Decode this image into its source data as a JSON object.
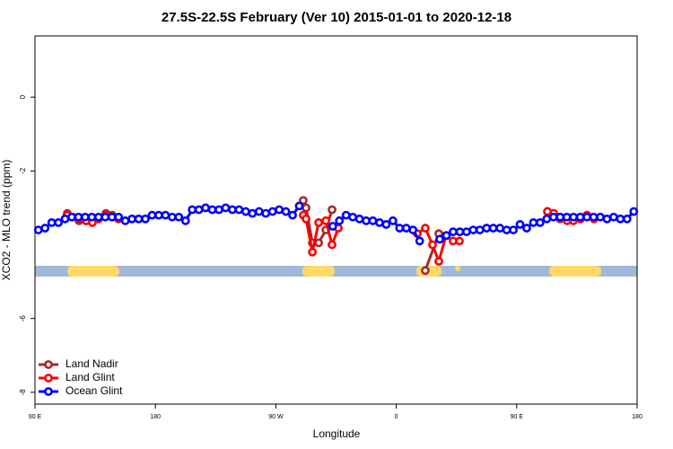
{
  "chart_data": {
    "type": "line",
    "title": "27.5S-22.5S February (Ver 10)   2015-01-01 to 2020-12-18",
    "x_label": "Longitude",
    "y_label": "XCO2 - MLO trend (ppm)",
    "xlim": [
      90,
      540
    ],
    "ylim": [
      -8.32,
      1.66
    ],
    "xticks": [
      {
        "value": 90,
        "label": "90 E"
      },
      180,
      {
        "value": 270,
        "label": "90 W"
      },
      {
        "value": 360,
        "label": "0"
      },
      {
        "value": 450,
        "label": "90 E"
      },
      {
        "value": 540,
        "label": "180"
      }
    ],
    "yticks": [
      0,
      -2,
      -6,
      -8
    ],
    "legend": "bottom-left",
    "series": [
      {
        "name": "Land Nadir",
        "color": "#a52a2a",
        "x": [
          114.1,
          122.9,
          128.2,
          143,
          147.7,
          148,
          290.5,
          292.6,
          297.3,
          302,
          307.4,
          312,
          313,
          381.7,
          391.8,
          392,
          473,
          482.4,
          502.5
        ],
        "values": [
          -3.15,
          -3.35,
          -3.35,
          -3.15,
          -3.2,
          null,
          -2.8,
          -3.0,
          -3.95,
          -3.95,
          -3.6,
          -3.05,
          null,
          -4.7,
          -3.7,
          null,
          -3.1,
          -3.3,
          -3.2
        ]
      },
      {
        "name": "Land Glint",
        "color": "#ff0000",
        "x": [
          114.1,
          118.2,
          122.9,
          128.2,
          132.9,
          137.6,
          143,
          147.7,
          152.4,
          153,
          290.5,
          292.6,
          297.3,
          302,
          307.4,
          312,
          316.7,
          317,
          375.7,
          381.7,
          387.1,
          391.8,
          397.2,
          402.5,
          407.2,
          408,
          473,
          477.7,
          482.4,
          487.7,
          492.4,
          497.8,
          502.5,
          507.8
        ],
        "values": [
          -3.2,
          -3.25,
          -3.3,
          -3.35,
          -3.4,
          -3.3,
          -3.2,
          -3.25,
          -3.3,
          null,
          -3.2,
          -3.3,
          -4.2,
          -3.4,
          -3.35,
          -4.0,
          -3.55,
          null,
          -3.7,
          -3.55,
          -4.0,
          -4.45,
          -3.75,
          -3.9,
          -3.9,
          null,
          -3.1,
          -3.15,
          -3.25,
          -3.35,
          -3.35,
          -3.3,
          -3.2,
          -3.3
        ]
      },
      {
        "name": "Ocean Glint",
        "color": "#0000ff",
        "x": [
          92.5,
          97.5,
          102.5,
          107.5,
          112.5,
          117.5,
          122.5,
          127.5,
          132.5,
          137.5,
          142.5,
          147.5,
          152.5,
          157.5,
          162.5,
          167.5,
          172.5,
          177.5,
          182.5,
          187.5,
          192.5,
          197.5,
          202.5,
          207.5,
          212.5,
          217.5,
          222.5,
          227.5,
          232.5,
          237.5,
          242.5,
          247.5,
          252.5,
          257.5,
          262.5,
          267.5,
          272.5,
          277.5,
          282.5,
          287.5,
          292.5,
          297.5,
          302.5,
          307.5,
          312.5,
          317.5,
          322.5,
          327.5,
          332.5,
          337.5,
          342.5,
          347.5,
          352.5,
          357.5,
          362.5,
          367.5,
          372.5,
          377.5,
          382.5,
          387.5,
          392.5,
          397.5,
          402.5,
          407.5,
          412.5,
          417.5,
          422.5,
          427.5,
          432.5,
          437.5,
          442.5,
          447.5,
          452.5,
          457.5,
          462.5,
          467.5,
          472.5,
          477.5,
          482.5,
          487.5,
          492.5,
          497.5,
          502.5,
          507.5,
          512.5,
          517.5,
          522.5,
          527.5,
          532.5,
          537.5
        ],
        "values": [
          -3.6,
          -3.55,
          -3.4,
          -3.4,
          -3.3,
          -3.25,
          -3.25,
          -3.25,
          -3.25,
          -3.25,
          -3.25,
          -3.25,
          -3.25,
          -3.35,
          -3.3,
          -3.3,
          -3.3,
          -3.2,
          -3.2,
          -3.2,
          -3.25,
          -3.25,
          -3.35,
          -3.05,
          -3.05,
          -3.0,
          -3.05,
          -3.05,
          -3.0,
          -3.05,
          -3.05,
          -3.1,
          -3.15,
          -3.1,
          -3.15,
          -3.1,
          -3.05,
          -3.1,
          -3.2,
          -2.95,
          null,
          null,
          null,
          null,
          -3.5,
          -3.35,
          -3.2,
          -3.25,
          -3.3,
          -3.35,
          -3.35,
          -3.4,
          -3.45,
          -3.35,
          -3.55,
          -3.55,
          -3.6,
          -3.9,
          null,
          null,
          -3.85,
          -3.75,
          -3.65,
          -3.65,
          -3.65,
          -3.6,
          -3.6,
          -3.55,
          -3.55,
          -3.55,
          -3.6,
          -3.6,
          -3.45,
          -3.55,
          -3.4,
          -3.4,
          -3.3,
          -3.25,
          -3.25,
          -3.25,
          -3.25,
          -3.25,
          -3.25,
          -3.25,
          -3.25,
          -3.3,
          -3.25,
          -3.3,
          -3.3,
          -3.1
        ]
      }
    ]
  }
}
